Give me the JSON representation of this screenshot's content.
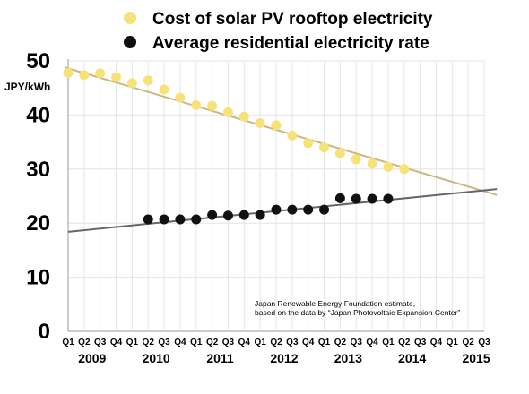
{
  "chart_data": {
    "type": "line",
    "ylabel": "JPY/kWh",
    "ylim": [
      0,
      50
    ],
    "yticks": [
      0,
      10,
      20,
      30,
      40,
      50
    ],
    "grid": true,
    "legend_placement": "top",
    "x_quarter_labels": [
      "Q1",
      "Q2",
      "Q3",
      "Q4",
      "Q1",
      "Q2",
      "Q3",
      "Q4",
      "Q1",
      "Q2",
      "Q3",
      "Q4",
      "Q1",
      "Q2",
      "Q3",
      "Q4",
      "Q1",
      "Q2",
      "Q3",
      "Q4",
      "Q1",
      "Q2",
      "Q3",
      "Q4",
      "Q1",
      "Q2",
      "Q3"
    ],
    "years": [
      {
        "label": "2009",
        "start": 0
      },
      {
        "label": "2010",
        "start": 4
      },
      {
        "label": "2011",
        "start": 8
      },
      {
        "label": "2012",
        "start": 12
      },
      {
        "label": "2013",
        "start": 16
      },
      {
        "label": "2014",
        "start": 20
      },
      {
        "label": "2015",
        "start": 24
      }
    ],
    "annotation": [
      "Japan Renewable Energy Foundation estimate,",
      "based on the data by “Japan Photovoltaic Expansion Center”"
    ],
    "series": [
      {
        "name": "Cost of solar PV rooftop electricity",
        "color": "#f7e27a",
        "trend_color": "#c9b980",
        "marker": "circle",
        "x": [
          0,
          1,
          2,
          3,
          4,
          5,
          6,
          7,
          8,
          9,
          10,
          11,
          12,
          13,
          14,
          15,
          16,
          17,
          18,
          19,
          20,
          21
        ],
        "values": [
          47.8,
          47.4,
          47.7,
          47.0,
          45.9,
          46.4,
          44.7,
          43.2,
          41.8,
          41.7,
          40.5,
          39.7,
          38.5,
          38.1,
          36.2,
          34.8,
          34.0,
          32.9,
          31.8,
          31.0,
          30.4,
          30.0
        ],
        "trend": {
          "from": [
            -0.2,
            48.8
          ],
          "to": [
            26.8,
            25.2
          ]
        }
      },
      {
        "name": "Average residential electricity rate",
        "color": "#111111",
        "trend_color": "#666666",
        "marker": "circle",
        "x": [
          5,
          6,
          7,
          8,
          9,
          10,
          11,
          12,
          13,
          14,
          15,
          16,
          17,
          18,
          19,
          20
        ],
        "values": [
          20.7,
          20.7,
          20.7,
          20.7,
          21.5,
          21.4,
          21.5,
          21.5,
          22.5,
          22.5,
          22.5,
          22.5,
          24.6,
          24.5,
          24.5,
          24.5
        ],
        "trend": {
          "from": [
            0,
            18.4
          ],
          "to": [
            26.8,
            26.3
          ]
        }
      }
    ]
  }
}
